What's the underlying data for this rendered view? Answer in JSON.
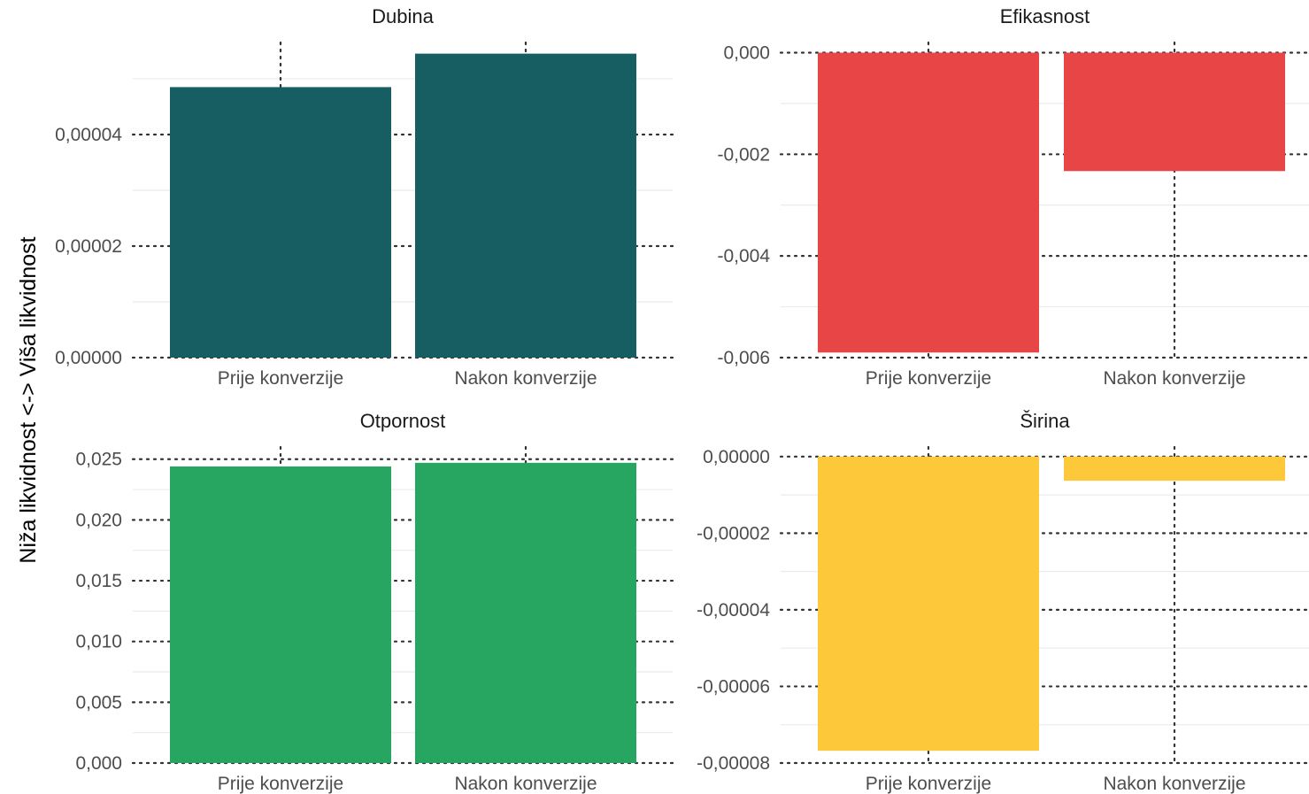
{
  "ylabel": "Niža likvidnost <-> Viša likvidnost",
  "colors": {
    "dubina": "#175e63",
    "efikasnost": "#e84646",
    "otpornost": "#27a662",
    "sirina": "#fdc83a"
  },
  "chart_data": [
    {
      "type": "bar",
      "title": "Dubina",
      "categories": [
        "Prije konverzije",
        "Nakon konverzije"
      ],
      "values": [
        4.85e-05,
        5.45e-05
      ],
      "ylim": [
        0,
        5.65e-05
      ],
      "yticks": [
        0,
        2e-05,
        4e-05
      ],
      "yticklabels": [
        "0,00000",
        "0,00002",
        "0,00004"
      ],
      "color": "#175e63"
    },
    {
      "type": "bar",
      "title": "Efikasnost",
      "categories": [
        "Prije konverzije",
        "Nakon konverzije"
      ],
      "values": [
        -0.0059,
        -0.00233
      ],
      "ylim": [
        -0.006,
        0.0002
      ],
      "yticks": [
        -0.006,
        -0.004,
        -0.002,
        0
      ],
      "yticklabels": [
        "-0,006",
        "-0,004",
        "-0,002",
        "0,000"
      ],
      "color": "#e84646"
    },
    {
      "type": "bar",
      "title": "Otpornost",
      "categories": [
        "Prije konverzije",
        "Nakon konverzije"
      ],
      "values": [
        0.0244,
        0.0247
      ],
      "ylim": [
        0,
        0.026
      ],
      "yticks": [
        0,
        0.005,
        0.01,
        0.015,
        0.02,
        0.025
      ],
      "yticklabels": [
        "0,000",
        "0,005",
        "0,010",
        "0,015",
        "0,020",
        "0,025"
      ],
      "color": "#27a662"
    },
    {
      "type": "bar",
      "title": "Širina",
      "categories": [
        "Prije konverzije",
        "Nakon konverzije"
      ],
      "values": [
        -7.68e-05,
        -6.3e-06
      ],
      "ylim": [
        -8e-05,
        2.5e-06
      ],
      "yticks": [
        -8e-05,
        -6e-05,
        -4e-05,
        -2e-05,
        0
      ],
      "yticklabels": [
        "-0,00008",
        "-0,00006",
        "-0,00004",
        "-0,00002",
        "0,00000"
      ],
      "color": "#fdc83a"
    }
  ]
}
